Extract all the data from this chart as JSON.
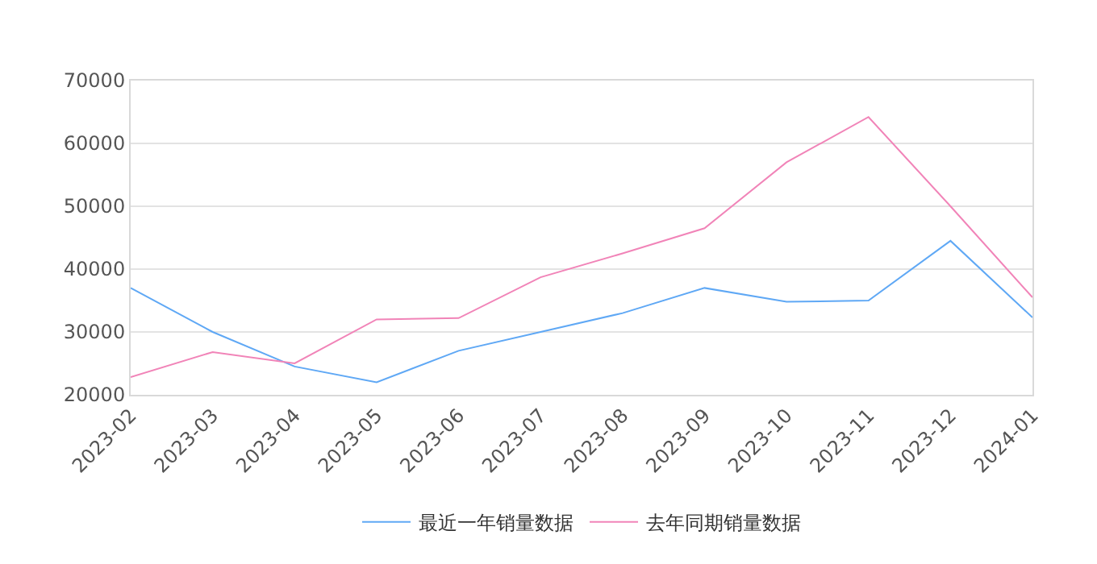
{
  "chart_data": {
    "type": "line",
    "categories": [
      "2023-02",
      "2023-03",
      "2023-04",
      "2023-05",
      "2023-06",
      "2023-07",
      "2023-08",
      "2023-09",
      "2023-10",
      "2023-11",
      "2023-12",
      "2024-01"
    ],
    "series": [
      {
        "name": "最近一年销量数据",
        "color": "#5fa8f5",
        "values": [
          37000,
          30000,
          24500,
          22000,
          27000,
          30000,
          33000,
          37000,
          34800,
          35000,
          44500,
          32300
        ]
      },
      {
        "name": "去年同期销量数据",
        "color": "#f184b8",
        "values": [
          22800,
          26800,
          25000,
          32000,
          32200,
          38700,
          42500,
          46500,
          57000,
          64200,
          50000,
          35500
        ]
      }
    ],
    "ylim": [
      20000,
      70000
    ],
    "yticks": [
      20000,
      30000,
      40000,
      50000,
      60000,
      70000
    ],
    "grid": "y",
    "legend": "bottom",
    "marker": "none",
    "line_style": "solid"
  }
}
